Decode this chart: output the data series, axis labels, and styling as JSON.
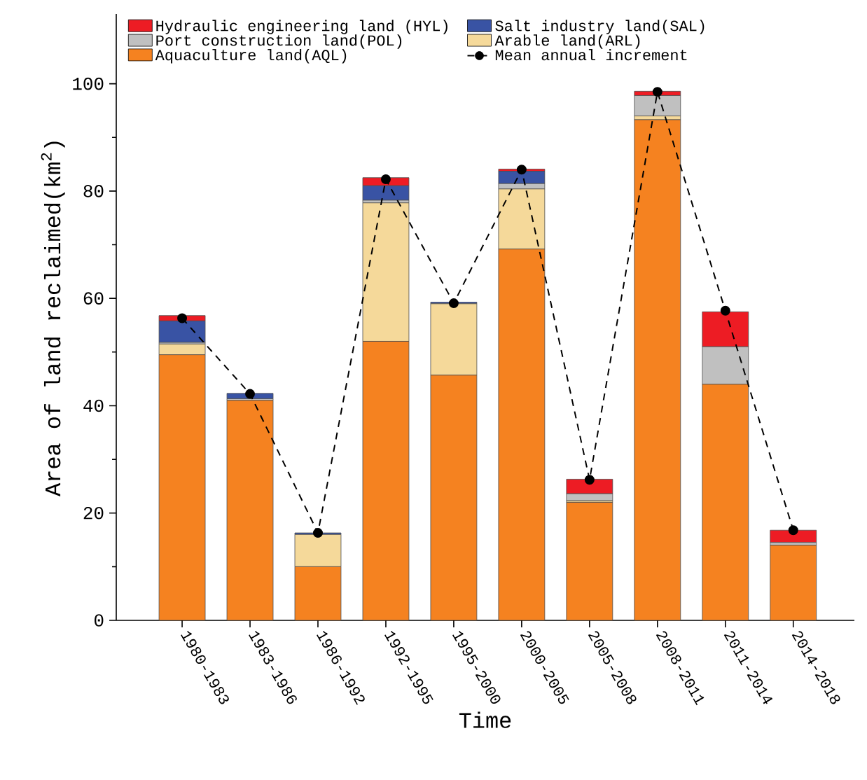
{
  "chart_data": {
    "type": "bar",
    "stacked": true,
    "xlabel": "Time",
    "ylabel": "Area of land reclaimed(km$^{2}$)",
    "categories": [
      "1980-1983",
      "1983-1986",
      "1986-1992",
      "1992-1995",
      "1995-2000",
      "2000-2005",
      "2005-2008",
      "2008-2011",
      "2011-2014",
      "2014-2018"
    ],
    "series": [
      {
        "name": "Aquaculture land(AQL)",
        "color": "#f58220",
        "values": [
          49.5,
          41,
          10,
          52,
          45.7,
          69.2,
          22,
          93.3,
          44,
          14
        ]
      },
      {
        "name": "Arable land(ARL)",
        "color": "#f5d99a",
        "values": [
          2,
          0,
          6,
          25.8,
          13.3,
          11.2,
          0.3,
          0.7,
          0,
          0
        ]
      },
      {
        "name": "Port construction land(POL)",
        "color": "#c0c0c0",
        "values": [
          0.3,
          0.3,
          0,
          0.5,
          0,
          1,
          1.3,
          3.8,
          7,
          0.5
        ]
      },
      {
        "name": "Salt industry land(SAL)",
        "color": "#3953a4",
        "values": [
          4,
          1,
          0.3,
          2.7,
          0.3,
          2.3,
          0,
          0,
          0,
          0
        ]
      },
      {
        "name": "Hydraulic engineering land (HYL)",
        "color": "#ed1c24",
        "values": [
          1,
          0,
          0,
          1.5,
          0,
          0.4,
          2.7,
          0.8,
          6.5,
          2.3
        ]
      },
      {
        "name": "Mean annual increment",
        "type": "line",
        "color": "#000000",
        "marker": "circle",
        "line_style": "dashed",
        "values": [
          56.3,
          42.2,
          16.3,
          82.2,
          59.1,
          84.0,
          26.2,
          98.5,
          57.7,
          16.8
        ]
      }
    ],
    "ylim": [
      0,
      113
    ],
    "yticks": [
      0,
      20,
      40,
      60,
      80,
      100
    ],
    "grid": false,
    "legend": "top"
  }
}
